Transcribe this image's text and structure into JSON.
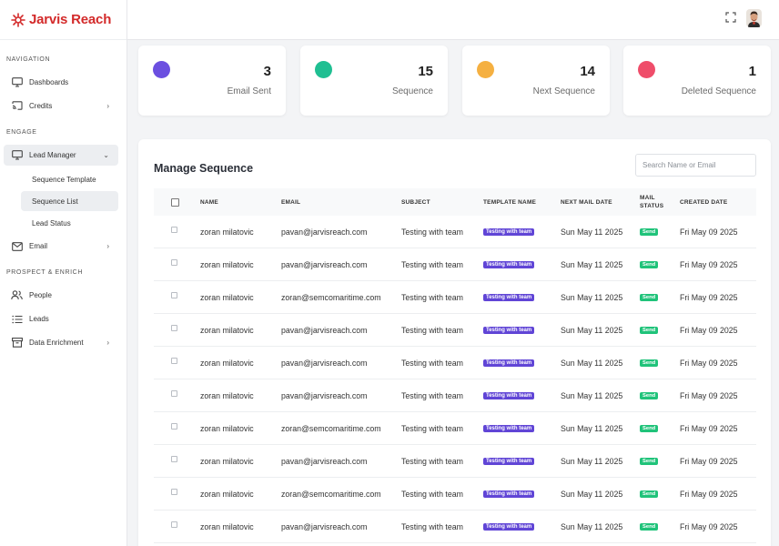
{
  "app": {
    "logo_text": "Jarvis Reach"
  },
  "sidebar": {
    "sections": {
      "navigation": "NAVIGATION",
      "engage": "ENGAGE",
      "prospect": "PROSPECT & ENRICH"
    },
    "items": {
      "dashboards": "Dashboards",
      "credits": "Credits",
      "lead_manager": "Lead Manager",
      "sequence_template": "Sequence Template",
      "sequence_list": "Sequence List",
      "lead_status": "Lead Status",
      "email": "Email",
      "people": "People",
      "leads": "Leads",
      "data_enrichment": "Data Enrichment"
    }
  },
  "stats": [
    {
      "value": "3",
      "label": "Email Sent",
      "color": "#6b4fe0"
    },
    {
      "value": "15",
      "label": "Sequence",
      "color": "#1fbf92"
    },
    {
      "value": "14",
      "label": "Next Sequence",
      "color": "#f5b041"
    },
    {
      "value": "1",
      "label": "Deleted Sequence",
      "color": "#ef4d6a"
    }
  ],
  "table": {
    "title": "Manage Sequence",
    "search_placeholder": "Search Name or Email",
    "headers": {
      "name": "NAME",
      "email": "EMAIL",
      "subject": "SUBJECT",
      "template": "TEMPLATE NAME",
      "next_date": "NEXT MAIL DATE",
      "status": "MAIL STATUS",
      "created": "CREATED DATE"
    },
    "rows": [
      {
        "name": "zoran milatovic",
        "email": "pavan@jarvisreach.com",
        "subject": "Testing with team",
        "template": "Testing with team",
        "next_date": "Sun May 11 2025",
        "status": "Send",
        "created": "Fri May 09 2025"
      },
      {
        "name": "zoran milatovic",
        "email": "pavan@jarvisreach.com",
        "subject": "Testing with team",
        "template": "Testing with team",
        "next_date": "Sun May 11 2025",
        "status": "Send",
        "created": "Fri May 09 2025"
      },
      {
        "name": "zoran milatovic",
        "email": "zoran@semcomaritime.com",
        "subject": "Testing with team",
        "template": "Testing with team",
        "next_date": "Sun May 11 2025",
        "status": "Send",
        "created": "Fri May 09 2025"
      },
      {
        "name": "zoran milatovic",
        "email": "pavan@jarvisreach.com",
        "subject": "Testing with team",
        "template": "Testing with team",
        "next_date": "Sun May 11 2025",
        "status": "Send",
        "created": "Fri May 09 2025"
      },
      {
        "name": "zoran milatovic",
        "email": "pavan@jarvisreach.com",
        "subject": "Testing with team",
        "template": "Testing with team",
        "next_date": "Sun May 11 2025",
        "status": "Send",
        "created": "Fri May 09 2025"
      },
      {
        "name": "zoran milatovic",
        "email": "pavan@jarvisreach.com",
        "subject": "Testing with team",
        "template": "Testing with team",
        "next_date": "Sun May 11 2025",
        "status": "Send",
        "created": "Fri May 09 2025"
      },
      {
        "name": "zoran milatovic",
        "email": "zoran@semcomaritime.com",
        "subject": "Testing with team",
        "template": "Testing with team",
        "next_date": "Sun May 11 2025",
        "status": "Send",
        "created": "Fri May 09 2025"
      },
      {
        "name": "zoran milatovic",
        "email": "pavan@jarvisreach.com",
        "subject": "Testing with team",
        "template": "Testing with team",
        "next_date": "Sun May 11 2025",
        "status": "Send",
        "created": "Fri May 09 2025"
      },
      {
        "name": "zoran milatovic",
        "email": "zoran@semcomaritime.com",
        "subject": "Testing with team",
        "template": "Testing with team",
        "next_date": "Sun May 11 2025",
        "status": "Send",
        "created": "Fri May 09 2025"
      },
      {
        "name": "zoran milatovic",
        "email": "pavan@jarvisreach.com",
        "subject": "Testing with team",
        "template": "Testing with team",
        "next_date": "Sun May 11 2025",
        "status": "Send",
        "created": "Fri May 09 2025"
      }
    ]
  }
}
